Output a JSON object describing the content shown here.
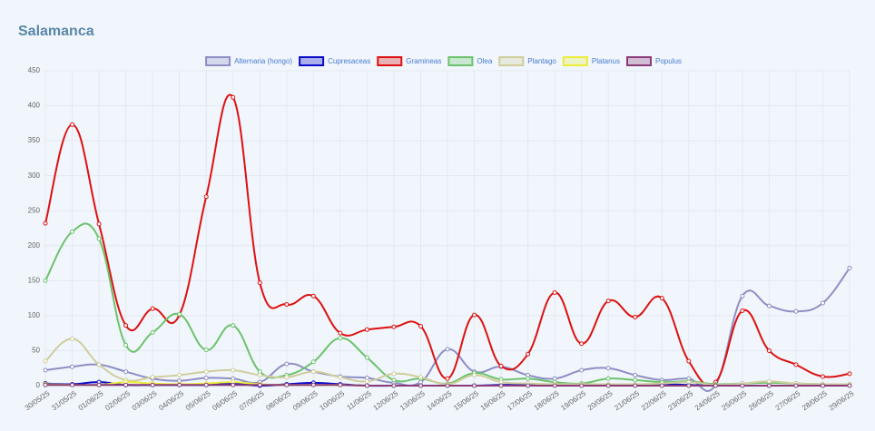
{
  "chart_data": {
    "type": "line",
    "title": "Salamanca",
    "categories": [
      "30/05/25",
      "31/05/25",
      "01/06/25",
      "02/06/25",
      "03/06/25",
      "04/06/25",
      "05/06/25",
      "06/06/25",
      "07/06/25",
      "08/06/25",
      "09/06/25",
      "10/06/25",
      "11/06/25",
      "12/06/25",
      "13/06/25",
      "14/06/25",
      "15/06/25",
      "16/06/25",
      "17/06/25",
      "18/06/25",
      "19/06/25",
      "20/06/25",
      "21/06/25",
      "22/06/25",
      "23/06/25",
      "24/06/25",
      "25/06/25",
      "26/06/25",
      "27/06/25",
      "28/06/25",
      "29/06/25"
    ],
    "series": [
      {
        "name": "Alternaria (hongo)",
        "color": "#8e8ec4",
        "values": [
          22,
          27,
          30,
          20,
          10,
          7,
          11,
          10,
          5,
          31,
          20,
          13,
          11,
          4,
          5,
          52,
          20,
          27,
          15,
          10,
          22,
          25,
          15,
          8,
          10,
          1,
          128,
          114,
          106,
          118,
          168
        ]
      },
      {
        "name": "Cupresaceas",
        "color": "#0a0ac8",
        "values": [
          3,
          2,
          5,
          1,
          1,
          1,
          1,
          3,
          0,
          2,
          4,
          2,
          0,
          0,
          0,
          0,
          0,
          1,
          1,
          1,
          1,
          1,
          1,
          2,
          1,
          0,
          0,
          0,
          0,
          0,
          1
        ]
      },
      {
        "name": "Gramineas",
        "color": "#dd1111",
        "values": [
          232,
          373,
          231,
          86,
          110,
          101,
          270,
          412,
          147,
          116,
          128,
          75,
          80,
          84,
          85,
          10,
          101,
          28,
          45,
          133,
          60,
          121,
          98,
          125,
          35,
          5,
          107,
          50,
          30,
          13,
          17
        ]
      },
      {
        "name": "Olea",
        "color": "#6cc26c",
        "values": [
          150,
          220,
          210,
          58,
          76,
          102,
          51,
          86,
          20,
          15,
          34,
          68,
          40,
          8,
          10,
          3,
          18,
          9,
          10,
          5,
          3,
          10,
          8,
          5,
          6,
          2,
          3,
          4,
          3,
          2,
          2
        ]
      },
      {
        "name": "Plantago",
        "color": "#cfcd9c",
        "values": [
          35,
          67,
          30,
          8,
          12,
          15,
          20,
          22,
          15,
          12,
          20,
          12,
          6,
          17,
          12,
          2,
          15,
          5,
          3,
          2,
          2,
          2,
          2,
          3,
          5,
          1,
          3,
          6,
          3,
          2,
          2
        ]
      },
      {
        "name": "Platanus",
        "color": "#ecec3a",
        "values": [
          2,
          1,
          1,
          5,
          3,
          2,
          3,
          5,
          2,
          1,
          1,
          1,
          0,
          0,
          0,
          0,
          0,
          0,
          0,
          0,
          0,
          0,
          0,
          0,
          0,
          0,
          0,
          0,
          0,
          0,
          0
        ]
      },
      {
        "name": "Populus",
        "color": "#8a3a78",
        "values": [
          1,
          1,
          1,
          1,
          1,
          1,
          1,
          1,
          1,
          1,
          1,
          1,
          0,
          0,
          0,
          0,
          0,
          0,
          0,
          0,
          0,
          0,
          0,
          0,
          0,
          0,
          0,
          0,
          0,
          0,
          0
        ]
      }
    ],
    "ylim": [
      0,
      450
    ],
    "yticks": [
      0,
      50,
      100,
      150,
      200,
      250,
      300,
      350,
      400,
      450
    ],
    "grid": true,
    "legend": "top"
  }
}
